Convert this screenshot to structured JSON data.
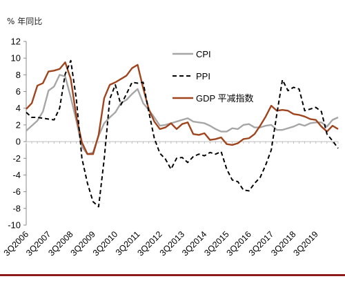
{
  "chart_data": {
    "type": "line",
    "unit_label": "% 年同比",
    "y_ticks": [
      12,
      10,
      8,
      6,
      4,
      2,
      0,
      -2,
      -4,
      -6,
      -8,
      -10
    ],
    "ylim": [
      -10,
      12
    ],
    "x_tick_labels": [
      "3Q2006",
      "3Q2007",
      "3Q2008",
      "3Q2009",
      "3Q2010",
      "3Q2011",
      "3Q2012",
      "3Q2013",
      "3Q2014",
      "3Q2015",
      "3Q2016",
      "3Q2017",
      "3Q2018",
      "3Q2019"
    ],
    "x_start": "3Q2006",
    "x_end": "3Q2019",
    "grid": false,
    "legend_position": "top-right",
    "series": [
      {
        "name": "CPI",
        "color": "#a6a6a6",
        "style": "solid",
        "values": [
          1.3,
          1.9,
          2.5,
          3.6,
          6.1,
          6.6,
          8.0,
          7.8,
          5.3,
          2.5,
          -0.6,
          -1.5,
          -1.3,
          0.7,
          2.2,
          2.9,
          3.5,
          4.6,
          5.0,
          5.7,
          6.3,
          4.6,
          3.8,
          2.9,
          1.9,
          2.0,
          2.2,
          2.4,
          2.6,
          2.8,
          2.4,
          2.3,
          2.2,
          1.9,
          1.5,
          1.2,
          1.2,
          1.6,
          1.5,
          2.0,
          2.1,
          1.7,
          1.7,
          1.9,
          2.0,
          1.4,
          1.4,
          1.6,
          1.8,
          2.1,
          1.9,
          2.2,
          2.3,
          2.3,
          1.8,
          2.6,
          2.9
        ]
      },
      {
        "name": "PPI",
        "color": "#000000",
        "style": "dashed",
        "values": [
          3.5,
          2.9,
          2.9,
          2.8,
          2.7,
          2.6,
          4.0,
          8.1,
          9.7,
          5.1,
          -2.0,
          -5.0,
          -7.2,
          -7.8,
          -2.1,
          5.1,
          6.8,
          4.4,
          5.7,
          7.1,
          7.0,
          7.1,
          3.6,
          0.4,
          -1.4,
          -2.1,
          -3.3,
          -2.0,
          -1.9,
          -2.5,
          -1.8,
          -1.5,
          -1.7,
          -1.3,
          -1.5,
          -1.2,
          -3.3,
          -4.6,
          -4.8,
          -5.8,
          -5.9,
          -5.0,
          -4.3,
          -2.8,
          -1.0,
          3.3,
          7.4,
          6.1,
          6.5,
          6.3,
          3.7,
          3.9,
          4.1,
          3.6,
          0.9,
          0.1,
          -0.8
        ]
      },
      {
        "name": "GDP 平减指数",
        "color": "#a0441e",
        "style": "solid",
        "values": [
          3.9,
          4.6,
          6.7,
          7.0,
          8.4,
          8.5,
          8.7,
          9.5,
          7.5,
          3.0,
          -0.1,
          -1.5,
          -1.5,
          0.8,
          5.2,
          6.8,
          7.1,
          7.5,
          7.9,
          8.8,
          9.2,
          6.4,
          3.9,
          2.4,
          1.5,
          1.7,
          2.2,
          1.5,
          2.1,
          2.3,
          0.9,
          0.8,
          1.0,
          0.2,
          0.3,
          0.5,
          -0.3,
          -0.4,
          -0.2,
          0.3,
          0.4,
          0.9,
          1.9,
          3.0,
          4.3,
          3.7,
          3.8,
          3.7,
          3.3,
          3.2,
          3.0,
          2.7,
          2.6,
          1.8,
          1.2,
          1.9,
          1.5
        ]
      }
    ]
  }
}
